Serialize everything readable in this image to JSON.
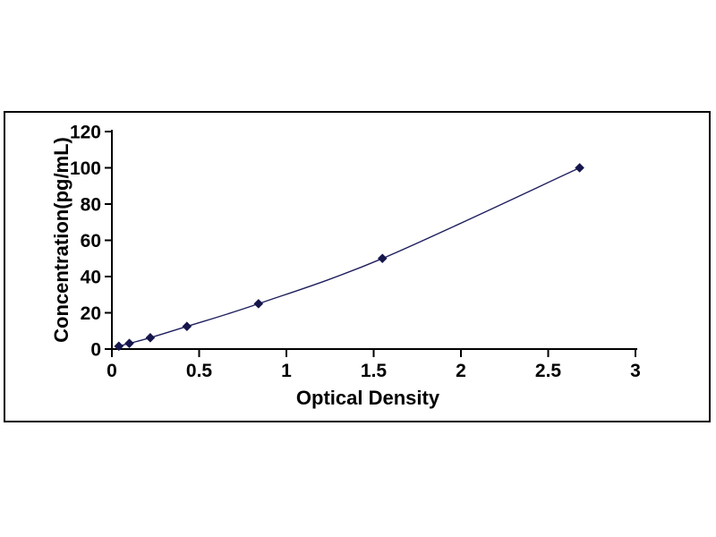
{
  "figure": {
    "background_color": "#ffffff",
    "frame": {
      "border_color": "#000000",
      "border_width": 2,
      "fill": "#ffffff"
    }
  },
  "chart_data": {
    "type": "scatter",
    "title": "",
    "xlabel": "Optical Density",
    "ylabel": "Concentration(pg/mL)",
    "series": [
      {
        "name": "standard-curve",
        "x": [
          0.04,
          0.1,
          0.22,
          0.43,
          0.84,
          1.55,
          2.68
        ],
        "y": [
          1.56,
          3.12,
          6.25,
          12.5,
          25,
          50,
          100
        ]
      }
    ],
    "xlim": [
      0,
      3
    ],
    "ylim": [
      0,
      120
    ],
    "x_ticks": [
      0,
      0.5,
      1,
      1.5,
      2,
      2.5,
      3
    ],
    "y_ticks": [
      0,
      20,
      40,
      60,
      80,
      100,
      120
    ],
    "grid": false,
    "legend": false,
    "line_style": "smooth",
    "marker": "diamond",
    "line_color": "#1f1f5e",
    "marker_color": "#16164d",
    "axis_color": "#000000",
    "tick_label_color": "#000000"
  }
}
